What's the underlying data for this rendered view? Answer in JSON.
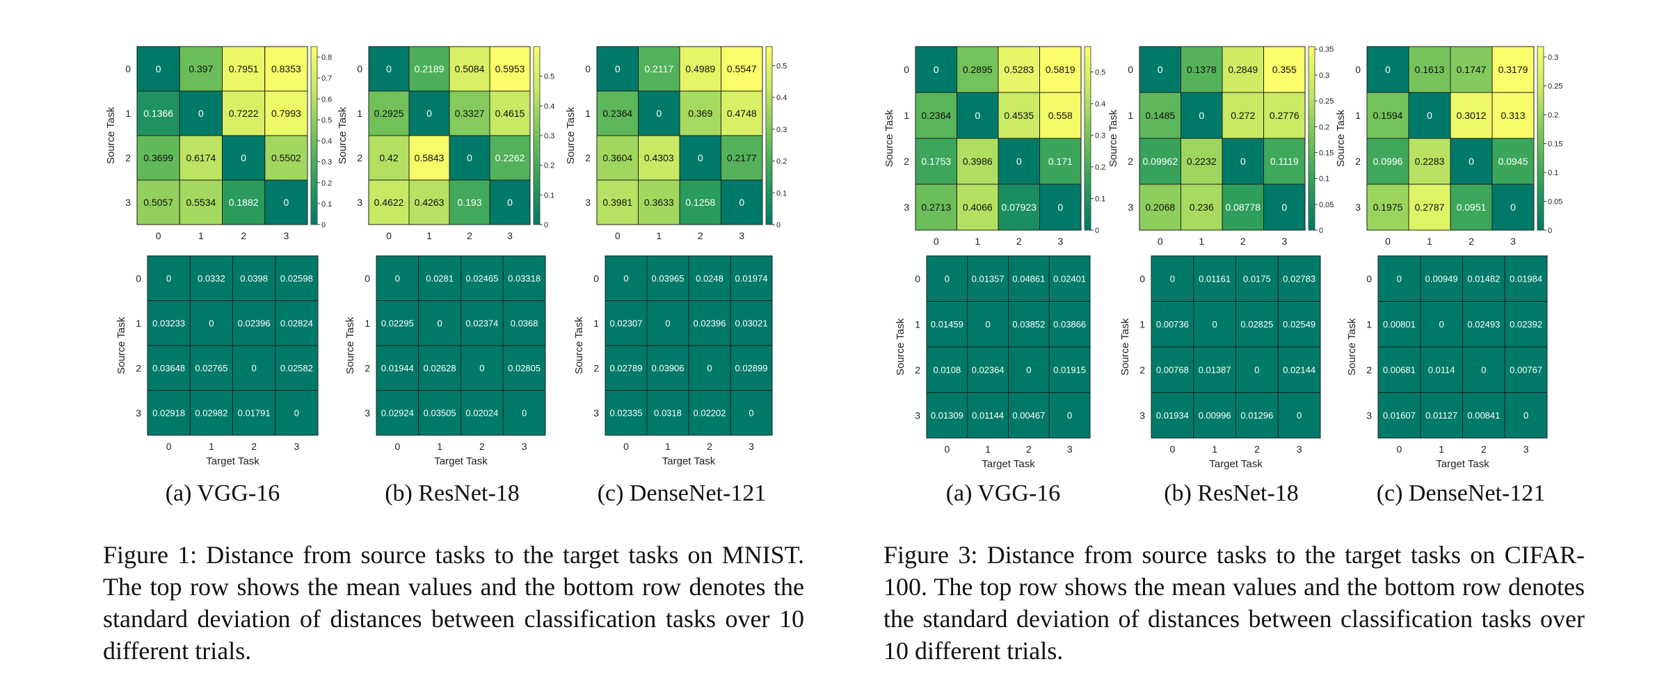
{
  "figures": [
    {
      "caption": "Figure 1: Distance from source tasks to the target tasks on MNIST. The top row shows the mean values and the bottom row denotes the standard deviation of distances between classification tasks over 10 different trials.",
      "subcaptions": [
        "(a) VGG-16",
        "(b) ResNet-18",
        "(c) DenseNet-121"
      ]
    },
    {
      "caption": "Figure 3: Distance from source tasks to the target tasks on CIFAR-100. The top row shows the mean values and the bottom row denotes the standard deviation of distances between classification tasks over 10 different trials.",
      "subcaptions": [
        "(a) VGG-16",
        "(b) ResNet-18",
        "(c) DenseNet-121"
      ]
    }
  ],
  "chart_data": [
    {
      "type": "heatmap",
      "figure": "Figure 1",
      "panel": "(a) VGG-16",
      "row": "mean",
      "ylabel": "Source Task",
      "xlabel": "",
      "categories": [
        "0",
        "1",
        "2",
        "3"
      ],
      "values": [
        [
          "0",
          "0.397",
          "0.7951",
          "0.8353"
        ],
        [
          "0.1366",
          "0",
          "0.7222",
          "0.7993"
        ],
        [
          "0.3699",
          "0.6174",
          "0",
          "0.5502"
        ],
        [
          "0.5057",
          "0.5534",
          "0.1882",
          "0"
        ]
      ],
      "colorbar": {
        "min": 0,
        "max": 0.85,
        "ticks": [
          "0",
          "0.1",
          "0.2",
          "0.3",
          "0.4",
          "0.5",
          "0.6",
          "0.7",
          "0.8"
        ]
      }
    },
    {
      "type": "heatmap",
      "figure": "Figure 1",
      "panel": "(b) ResNet-18",
      "row": "mean",
      "ylabel": "Source Task",
      "xlabel": "",
      "categories": [
        "0",
        "1",
        "2",
        "3"
      ],
      "values": [
        [
          "0",
          "0.2189",
          "0.5084",
          "0.5953"
        ],
        [
          "0.2925",
          "0",
          "0.3327",
          "0.4615"
        ],
        [
          "0.42",
          "0.5843",
          "0",
          "0.2262"
        ],
        [
          "0.4622",
          "0.4263",
          "0.193",
          "0"
        ]
      ],
      "colorbar": {
        "min": 0,
        "max": 0.6,
        "ticks": [
          "0",
          "0.1",
          "0.2",
          "0.3",
          "0.4",
          "0.5"
        ]
      }
    },
    {
      "type": "heatmap",
      "figure": "Figure 1",
      "panel": "(c) DenseNet-121",
      "row": "mean",
      "ylabel": "Source Task",
      "xlabel": "",
      "categories": [
        "0",
        "1",
        "2",
        "3"
      ],
      "values": [
        [
          "0",
          "0.2117",
          "0.4989",
          "0.5547"
        ],
        [
          "0.2364",
          "0",
          "0.369",
          "0.4748"
        ],
        [
          "0.3604",
          "0.4303",
          "0",
          "0.2177"
        ],
        [
          "0.3981",
          "0.3633",
          "0.1258",
          "0"
        ]
      ],
      "colorbar": {
        "min": 0,
        "max": 0.56,
        "ticks": [
          "0",
          "0.1",
          "0.2",
          "0.3",
          "0.4",
          "0.5"
        ]
      }
    },
    {
      "type": "heatmap",
      "figure": "Figure 1",
      "panel": "(a) VGG-16",
      "row": "std",
      "ylabel": "Source Task",
      "xlabel": "Target Task",
      "categories": [
        "0",
        "1",
        "2",
        "3"
      ],
      "values": [
        [
          "0",
          "0.0332",
          "0.0398",
          "0.02598"
        ],
        [
          "0.03233",
          "0",
          "0.02396",
          "0.02824"
        ],
        [
          "0.03648",
          "0.02765",
          "0",
          "0.02582"
        ],
        [
          "0.02918",
          "0.02982",
          "0.01791",
          "0"
        ]
      ]
    },
    {
      "type": "heatmap",
      "figure": "Figure 1",
      "panel": "(b) ResNet-18",
      "row": "std",
      "ylabel": "Source Task",
      "xlabel": "Target Task",
      "categories": [
        "0",
        "1",
        "2",
        "3"
      ],
      "values": [
        [
          "0",
          "0.0281",
          "0.02465",
          "0.03318"
        ],
        [
          "0.02295",
          "0",
          "0.02374",
          "0.0368"
        ],
        [
          "0.01944",
          "0.02628",
          "0",
          "0.02805"
        ],
        [
          "0.02924",
          "0.03505",
          "0.02024",
          "0"
        ]
      ]
    },
    {
      "type": "heatmap",
      "figure": "Figure 1",
      "panel": "(c) DenseNet-121",
      "row": "std",
      "ylabel": "Source Task",
      "xlabel": "Target Task",
      "categories": [
        "0",
        "1",
        "2",
        "3"
      ],
      "values": [
        [
          "0",
          "0.03965",
          "0.0248",
          "0.01974"
        ],
        [
          "0.02307",
          "0",
          "0.02396",
          "0.03021"
        ],
        [
          "0.02789",
          "0.03906",
          "0",
          "0.02899"
        ],
        [
          "0.02335",
          "0.0318",
          "0.02202",
          "0"
        ]
      ]
    },
    {
      "type": "heatmap",
      "figure": "Figure 3",
      "panel": "(a) VGG-16",
      "row": "mean",
      "ylabel": "Source Task",
      "xlabel": "",
      "categories": [
        "0",
        "1",
        "2",
        "3"
      ],
      "values": [
        [
          "0",
          "0.2895",
          "0.5283",
          "0.5819"
        ],
        [
          "0.2364",
          "0",
          "0.4535",
          "0.558"
        ],
        [
          "0.1753",
          "0.3986",
          "0",
          "0.171"
        ],
        [
          "0.2713",
          "0.4066",
          "0.07923",
          "0"
        ]
      ],
      "colorbar": {
        "min": 0,
        "max": 0.58,
        "ticks": [
          "0",
          "0.1",
          "0.2",
          "0.3",
          "0.4",
          "0.5"
        ]
      }
    },
    {
      "type": "heatmap",
      "figure": "Figure 3",
      "panel": "(b) ResNet-18",
      "row": "mean",
      "ylabel": "Source Task",
      "xlabel": "",
      "categories": [
        "0",
        "1",
        "2",
        "3"
      ],
      "values": [
        [
          "0",
          "0.1378",
          "0.2849",
          "0.355"
        ],
        [
          "0.1485",
          "0",
          "0.272",
          "0.2776"
        ],
        [
          "0.09962",
          "0.2232",
          "0",
          "0.1119"
        ],
        [
          "0.2068",
          "0.236",
          "0.08778",
          "0"
        ]
      ],
      "colorbar": {
        "min": 0,
        "max": 0.355,
        "ticks": [
          "0",
          "0.05",
          "0.1",
          "0.15",
          "0.2",
          "0.25",
          "0.3",
          "0.35"
        ]
      }
    },
    {
      "type": "heatmap",
      "figure": "Figure 3",
      "panel": "(c) DenseNet-121",
      "row": "mean",
      "ylabel": "Source Task",
      "xlabel": "",
      "categories": [
        "0",
        "1",
        "2",
        "3"
      ],
      "values": [
        [
          "0",
          "0.1613",
          "0.1747",
          "0.3179"
        ],
        [
          "0.1594",
          "0",
          "0.3012",
          "0.313"
        ],
        [
          "0.0996",
          "0.2283",
          "0",
          "0.0945"
        ],
        [
          "0.1975",
          "0.2787",
          "0.0951",
          "0"
        ]
      ],
      "colorbar": {
        "min": 0,
        "max": 0.318,
        "ticks": [
          "0",
          "0.05",
          "0.1",
          "0.15",
          "0.2",
          "0.25",
          "0.3"
        ]
      }
    },
    {
      "type": "heatmap",
      "figure": "Figure 3",
      "panel": "(a) VGG-16",
      "row": "std",
      "ylabel": "Source Task",
      "xlabel": "Target Task",
      "categories": [
        "0",
        "1",
        "2",
        "3"
      ],
      "values": [
        [
          "0",
          "0.01357",
          "0.04861",
          "0.02401"
        ],
        [
          "0.01459",
          "0",
          "0.03852",
          "0.03866"
        ],
        [
          "0.0108",
          "0.02364",
          "0",
          "0.01915"
        ],
        [
          "0.01309",
          "0.01144",
          "0.00467",
          "0"
        ]
      ]
    },
    {
      "type": "heatmap",
      "figure": "Figure 3",
      "panel": "(b) ResNet-18",
      "row": "std",
      "ylabel": "Source Task",
      "xlabel": "Target Task",
      "categories": [
        "0",
        "1",
        "2",
        "3"
      ],
      "values": [
        [
          "0",
          "0.01161",
          "0.0175",
          "0.02783"
        ],
        [
          "0.00736",
          "0",
          "0.02825",
          "0.02549"
        ],
        [
          "0.00768",
          "0.01387",
          "0",
          "0.02144"
        ],
        [
          "0.01934",
          "0.00996",
          "0.01296",
          "0"
        ]
      ]
    },
    {
      "type": "heatmap",
      "figure": "Figure 3",
      "panel": "(c) DenseNet-121",
      "row": "std",
      "ylabel": "Source Task",
      "xlabel": "Target Task",
      "categories": [
        "0",
        "1",
        "2",
        "3"
      ],
      "values": [
        [
          "0",
          "0.00949",
          "0.01482",
          "0.01984"
        ],
        [
          "0.00801",
          "0",
          "0.02493",
          "0.02392"
        ],
        [
          "0.00681",
          "0.0114",
          "0",
          "0.00767"
        ],
        [
          "0.01607",
          "0.01127",
          "0.00841",
          "0"
        ]
      ]
    }
  ]
}
